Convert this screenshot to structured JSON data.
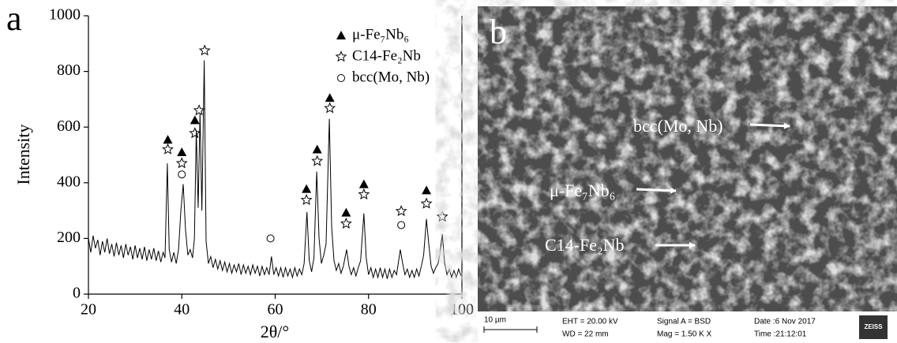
{
  "chart_data": {
    "type": "line",
    "panel_label": "a",
    "xlabel": "2θ/°",
    "ylabel": "Intensity",
    "xlim": [
      20,
      100
    ],
    "ylim": [
      0,
      1000
    ],
    "xticks": [
      20,
      40,
      60,
      80,
      100
    ],
    "yticks": [
      0,
      200,
      400,
      600,
      800,
      1000
    ],
    "legend": "upper right",
    "series": [
      {
        "color": "#000000",
        "x": [
          20,
          20.5,
          21,
          21.5,
          22,
          22.5,
          23,
          23.5,
          24,
          24.5,
          25,
          25.5,
          26,
          26.5,
          27,
          27.5,
          28,
          28.5,
          29,
          29.5,
          30,
          30.5,
          31,
          31.5,
          32,
          32.5,
          33,
          33.5,
          34,
          34.5,
          35,
          35.5,
          36,
          36.4,
          36.9,
          37.3,
          37.8,
          38.3,
          38.8,
          39.3,
          39.8,
          40.3,
          40.8,
          41.3,
          41.8,
          42.3,
          42.7,
          43.1,
          43.5,
          43.9,
          44.3,
          44.8,
          45.2,
          45.7,
          46.2,
          46.7,
          47.2,
          47.7,
          48.2,
          48.7,
          49.2,
          49.7,
          50.2,
          50.7,
          51.2,
          51.7,
          52.2,
          52.7,
          53.2,
          53.7,
          54.2,
          54.7,
          55.2,
          55.7,
          56.2,
          56.7,
          57.2,
          57.7,
          58.2,
          58.7,
          59.2,
          59.7,
          60.2,
          60.7,
          61.2,
          61.7,
          62.2,
          62.7,
          63.2,
          63.7,
          64.2,
          64.7,
          65.2,
          65.7,
          66.2,
          66.8,
          67.3,
          67.8,
          68.3,
          68.9,
          69.4,
          69.9,
          70.4,
          70.9,
          71.6,
          72.1,
          72.6,
          73.1,
          73.6,
          74.1,
          74.6,
          75.3,
          75.8,
          76.3,
          76.8,
          77.3,
          77.8,
          78.3,
          79.0,
          79.5,
          80,
          80.5,
          81,
          81.5,
          82,
          82.5,
          83,
          83.5,
          84,
          84.5,
          85,
          85.5,
          86,
          86.8,
          87.3,
          87.8,
          88.3,
          88.8,
          89.3,
          89.8,
          90.3,
          90.8,
          91.3,
          91.8,
          92.4,
          92.9,
          93.4,
          93.9,
          94.4,
          94.9,
          95.3,
          95.8,
          96.3,
          96.8,
          97.3,
          97.8,
          98.3,
          98.8,
          99.3,
          99.8
        ],
        "values": [
          200,
          150,
          210,
          165,
          195,
          140,
          190,
          150,
          200,
          145,
          180,
          135,
          185,
          140,
          175,
          130,
          180,
          140,
          170,
          125,
          175,
          130,
          165,
          125,
          170,
          120,
          160,
          125,
          165,
          120,
          155,
          115,
          150,
          130,
          470,
          160,
          115,
          150,
          110,
          160,
          300,
          395,
          230,
          140,
          160,
          130,
          200,
          590,
          310,
          650,
          300,
          840,
          190,
          110,
          135,
          95,
          125,
          90,
          120,
          85,
          115,
          80,
          110,
          75,
          105,
          80,
          110,
          70,
          105,
          75,
          100,
          70,
          105,
          75,
          100,
          65,
          100,
          70,
          95,
          70,
          135,
          70,
          95,
          65,
          95,
          60,
          95,
          65,
          90,
          60,
          95,
          65,
          90,
          70,
          110,
          295,
          120,
          80,
          130,
          440,
          200,
          110,
          140,
          180,
          630,
          240,
          120,
          85,
          110,
          75,
          100,
          160,
          100,
          70,
          95,
          65,
          95,
          120,
          290,
          130,
          70,
          95,
          60,
          90,
          60,
          95,
          60,
          90,
          55,
          90,
          60,
          85,
          70,
          160,
          110,
          70,
          90,
          60,
          85,
          60,
          90,
          65,
          100,
          140,
          270,
          180,
          100,
          75,
          95,
          110,
          150,
          215,
          110,
          70,
          90,
          60,
          85,
          60,
          90,
          65
        ]
      },
      {
        "name": "μ-Fe₇Nb₆",
        "marker": "triangle",
        "color": "#000000",
        "x": [
          37,
          40,
          42.8,
          66.7,
          69,
          71.7,
          75.2,
          79,
          92.4
        ],
        "values": [
          555,
          510,
          625,
          378,
          520,
          705,
          293,
          395,
          373
        ]
      },
      {
        "name": "C14-Fe₂Nb",
        "marker": "star",
        "color": "#000000",
        "x": [
          37,
          40,
          42.8,
          43.7,
          44.9,
          66.7,
          69,
          71.7,
          75.2,
          79,
          87,
          92.4,
          95.8
        ],
        "values": [
          520,
          470,
          578,
          660,
          875,
          338,
          478,
          668,
          253,
          358,
          298,
          325,
          278
        ]
      },
      {
        "name": "bcc(Mo, Nb)",
        "marker": "circle",
        "color": "#000000",
        "x": [
          40,
          59,
          87
        ],
        "values": [
          430,
          200,
          248
        ]
      }
    ]
  },
  "sem_image": {
    "panel_label": "b",
    "labels": [
      "bcc(Mo, Nb)",
      "μ-Fe₇Nb₆",
      "C14-Fe₂Nb"
    ],
    "info": {
      "scale": "10 µm",
      "eht": "EHT = 20.00 kV",
      "wd": "WD =  22 mm",
      "signal": "Signal A = BSD",
      "mag": "Mag =   1.50 K X",
      "date": "Date :6 Nov 2017",
      "time": "Time :21:12:01",
      "brand": "ZEISS"
    }
  }
}
